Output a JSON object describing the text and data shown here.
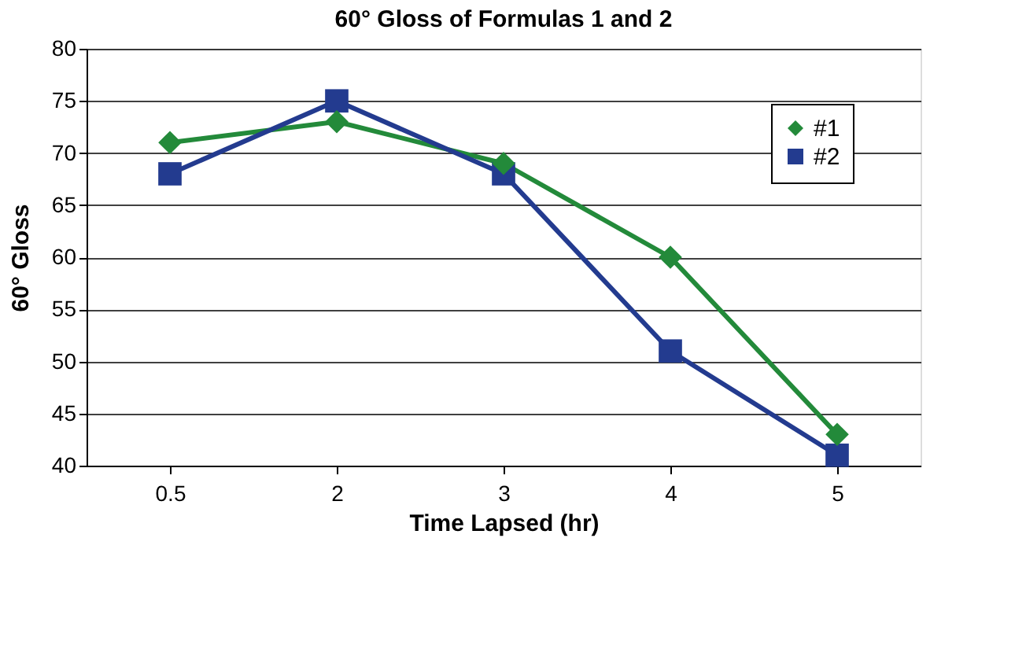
{
  "chart_data": {
    "type": "line",
    "title": "60° Gloss of Formulas 1 and 2",
    "xlabel": "Time Lapsed (hr)",
    "ylabel": "60° Gloss",
    "categories": [
      "0.5",
      "2",
      "3",
      "4",
      "5"
    ],
    "series": [
      {
        "name": "#1",
        "color": "#238a3a",
        "marker": "diamond",
        "values": [
          71,
          73,
          69,
          60,
          43
        ]
      },
      {
        "name": "#2",
        "color": "#233b8f",
        "marker": "square",
        "values": [
          68,
          75,
          68,
          51,
          41
        ]
      }
    ],
    "ylim": [
      40,
      80
    ],
    "yticks": [
      40,
      45,
      50,
      55,
      60,
      65,
      70,
      75,
      80
    ],
    "grid": "y",
    "legend": "right",
    "line_style": "solid"
  }
}
